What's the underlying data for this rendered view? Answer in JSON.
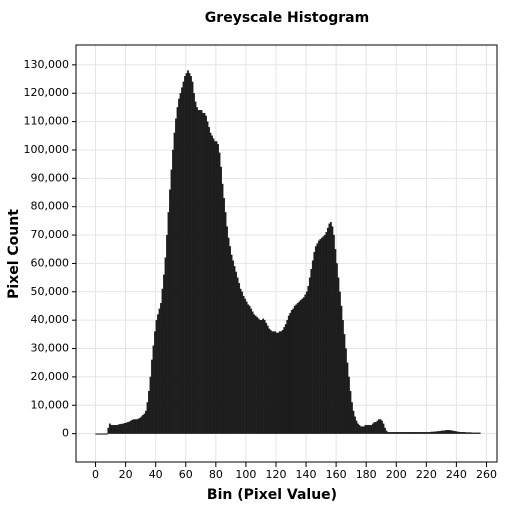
{
  "chart_data": {
    "type": "histogram",
    "title": "Greyscale Histogram",
    "x_label": "Bin (Pixel Value)",
    "y_label": "Pixel Count",
    "color": "#1c1c1c",
    "grid": true,
    "xlim": [
      -13,
      267
    ],
    "ylim": [
      -10000,
      137000
    ],
    "xticks": [
      0,
      20,
      40,
      60,
      80,
      100,
      120,
      140,
      160,
      180,
      200,
      220,
      240,
      260
    ],
    "yticks": [
      0,
      {
        "value": 10000,
        "label": "10,000"
      },
      {
        "value": 20000,
        "label": "20,000"
      },
      {
        "value": 30000,
        "label": "30,000"
      },
      {
        "value": 40000,
        "label": "40,000"
      },
      {
        "value": 50000,
        "label": "50,000"
      },
      {
        "value": 60000,
        "label": "60,000"
      },
      {
        "value": 70000,
        "label": "70,000"
      },
      {
        "value": 80000,
        "label": "80,000"
      },
      {
        "value": 90000,
        "label": "90,000"
      },
      {
        "value": 100000,
        "label": "100,000"
      },
      {
        "value": 110000,
        "label": "110,000"
      },
      {
        "value": 120000,
        "label": "120,000"
      },
      {
        "value": 130000,
        "label": "130,000"
      }
    ],
    "bins": [
      0,
      1,
      2,
      3,
      4,
      5,
      6,
      7,
      8,
      9,
      10,
      11,
      12,
      13,
      14,
      15,
      16,
      17,
      18,
      19,
      20,
      21,
      22,
      23,
      24,
      25,
      26,
      27,
      28,
      29,
      30,
      31,
      32,
      33,
      34,
      35,
      36,
      37,
      38,
      39,
      40,
      41,
      42,
      43,
      44,
      45,
      46,
      47,
      48,
      49,
      50,
      51,
      52,
      53,
      54,
      55,
      56,
      57,
      58,
      59,
      60,
      61,
      62,
      63,
      64,
      65,
      66,
      67,
      68,
      69,
      70,
      71,
      72,
      73,
      74,
      75,
      76,
      77,
      78,
      79,
      80,
      81,
      82,
      83,
      84,
      85,
      86,
      87,
      88,
      89,
      90,
      91,
      92,
      93,
      94,
      95,
      96,
      97,
      98,
      99,
      100,
      101,
      102,
      103,
      104,
      105,
      106,
      107,
      108,
      109,
      110,
      111,
      112,
      113,
      114,
      115,
      116,
      117,
      118,
      119,
      120,
      121,
      122,
      123,
      124,
      125,
      126,
      127,
      128,
      129,
      130,
      131,
      132,
      133,
      134,
      135,
      136,
      137,
      138,
      139,
      140,
      141,
      142,
      143,
      144,
      145,
      146,
      147,
      148,
      149,
      150,
      151,
      152,
      153,
      154,
      155,
      156,
      157,
      158,
      159,
      160,
      161,
      162,
      163,
      164,
      165,
      166,
      167,
      168,
      169,
      170,
      171,
      172,
      173,
      174,
      175,
      176,
      177,
      178,
      179,
      180,
      181,
      182,
      183,
      184,
      185,
      186,
      187,
      188,
      189,
      190,
      191,
      192,
      193,
      194,
      195,
      196,
      197,
      198,
      199,
      200,
      201,
      202,
      203,
      204,
      205,
      206,
      207,
      208,
      209,
      210,
      211,
      212,
      213,
      214,
      215,
      216,
      217,
      218,
      219,
      220,
      221,
      222,
      223,
      224,
      225,
      226,
      227,
      228,
      229,
      230,
      231,
      232,
      233,
      234,
      235,
      236,
      237,
      238,
      239,
      240,
      241,
      242,
      243,
      244,
      245,
      246,
      247,
      248,
      249,
      250,
      251,
      252,
      253,
      254,
      255,
      256
    ],
    "values": [
      0,
      0,
      0,
      0,
      0,
      0,
      0,
      0,
      2000,
      3500,
      3000,
      3000,
      3000,
      3000,
      3000,
      3200,
      3300,
      3400,
      3500,
      3700,
      3800,
      4000,
      4200,
      4500,
      4800,
      5000,
      5000,
      5000,
      5200,
      5500,
      6000,
      6500,
      7000,
      8000,
      11000,
      15000,
      20000,
      26000,
      31000,
      36000,
      40000,
      42000,
      44000,
      46000,
      51000,
      56000,
      62000,
      70000,
      78000,
      86000,
      93000,
      100000,
      106000,
      111000,
      115000,
      118000,
      120000,
      122000,
      124000,
      126000,
      127000,
      128000,
      127000,
      126000,
      124000,
      120000,
      117000,
      115000,
      114000,
      114000,
      114000,
      113000,
      113000,
      112000,
      110000,
      108000,
      106000,
      105000,
      104000,
      103000,
      103000,
      102000,
      99000,
      94000,
      88000,
      83000,
      78000,
      73000,
      69000,
      66000,
      63000,
      61000,
      59000,
      57000,
      55000,
      53000,
      51000,
      50000,
      48500,
      47500,
      46500,
      45500,
      45000,
      44000,
      43000,
      42000,
      41500,
      41000,
      40500,
      40000,
      40000,
      40500,
      40000,
      39000,
      38000,
      37000,
      36500,
      36000,
      36000,
      36000,
      35500,
      35500,
      36000,
      36000,
      36500,
      37500,
      38500,
      40000,
      41500,
      42500,
      43500,
      44000,
      45000,
      45500,
      46000,
      46500,
      47000,
      47500,
      48000,
      49000,
      50000,
      52000,
      55000,
      58000,
      61000,
      64000,
      66000,
      67000,
      68000,
      68500,
      69000,
      69500,
      70000,
      71000,
      72500,
      74000,
      74500,
      73000,
      70000,
      65000,
      60000,
      55000,
      50000,
      45000,
      40000,
      35000,
      30000,
      25000,
      20000,
      15000,
      11000,
      8000,
      6000,
      4500,
      3500,
      3000,
      2500,
      2500,
      2500,
      3000,
      3000,
      3000,
      3000,
      3000,
      3500,
      4000,
      4000,
      4500,
      5000,
      5000,
      4500,
      3500,
      2000,
      1000,
      500,
      500,
      500,
      500,
      500,
      500,
      500,
      500,
      500,
      500,
      500,
      500,
      500,
      500,
      500,
      500,
      500,
      500,
      500,
      500,
      500,
      500,
      500,
      500,
      500,
      500,
      500,
      500,
      500,
      600,
      600,
      700,
      700,
      800,
      800,
      900,
      1000,
      1000,
      1100,
      1200,
      1200,
      1200,
      1100,
      1000,
      900,
      800,
      700,
      600,
      500,
      500,
      500,
      500,
      400,
      400,
      400,
      400,
      300,
      300,
      300,
      300,
      300,
      300
    ]
  }
}
